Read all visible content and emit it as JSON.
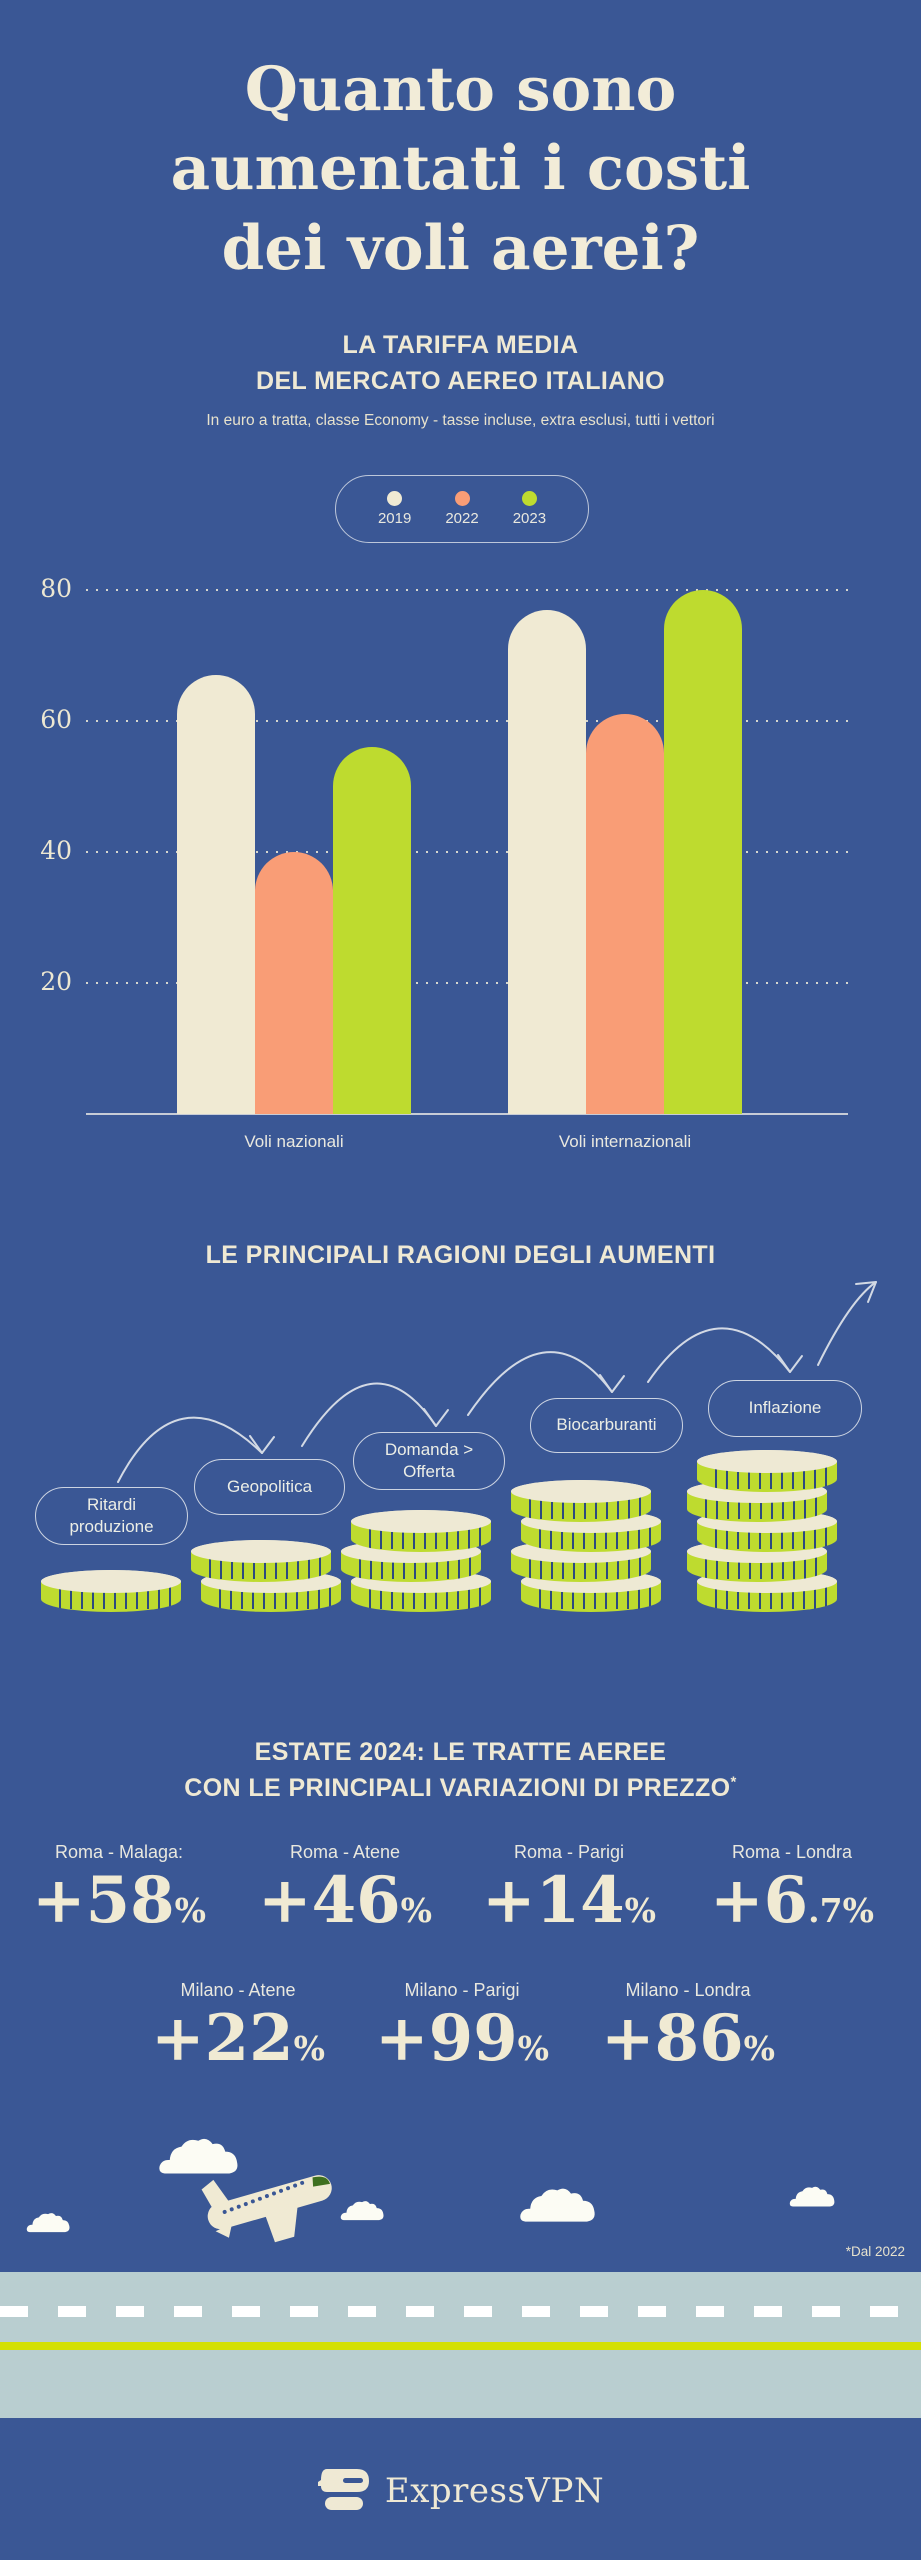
{
  "colors": {
    "background": "#3a5795",
    "cream": "#f0ead3",
    "salmon": "#f99d76",
    "lime": "#bedb2f",
    "road_band": "#b9ced0",
    "road_line": "#d4e005",
    "stroke_light": "#dbe0e9"
  },
  "header": {
    "title_lines": [
      "Quanto sono",
      "aumentati i costi",
      "dei voli aerei?"
    ]
  },
  "chart_section": {
    "title_line1": "LA TARIFFA MEDIA",
    "title_line2": "DEL MERCATO AEREO ITALIANO",
    "note": "In euro a tratta, classe Economy - tasse incluse, extra esclusi, tutti i vettori"
  },
  "chart_data": {
    "type": "bar",
    "title": "LA TARIFFA MEDIA DEL MERCATO AEREO ITALIANO",
    "subtitle": "In euro a tratta, classe Economy - tasse incluse, extra esclusi, tutti i vettori",
    "categories": [
      "Voli nazionali",
      "Voli internazionali"
    ],
    "series": [
      {
        "name": "2019",
        "color": "#f0ead3",
        "values": [
          67,
          77
        ]
      },
      {
        "name": "2022",
        "color": "#f99d76",
        "values": [
          40,
          61
        ]
      },
      {
        "name": "2023",
        "color": "#bedb2f",
        "values": [
          56,
          80
        ]
      }
    ],
    "unit": "euro a tratta",
    "ylim": [
      0,
      85
    ],
    "yticks": [
      20,
      40,
      60,
      80
    ],
    "grid": "horizontal-dotted",
    "legend_position": "top-center"
  },
  "reasons_section": {
    "title": "LE PRINCIPALI RAGIONI DEGLI AUMENTI",
    "items": [
      {
        "label": "Ritardi produzione",
        "coins": 1
      },
      {
        "label": "Geopolitica",
        "coins": 2
      },
      {
        "label": "Domanda > Offerta",
        "coins": 3
      },
      {
        "label": "Biocarburanti",
        "coins": 4
      },
      {
        "label": "Inflazione",
        "coins": 5
      }
    ]
  },
  "routes_section": {
    "title_line1": "ESTATE 2024: LE TRATTE AEREE",
    "title_line2": "CON LE PRINCIPALI VARIAZIONI DI PREZZO",
    "title_asterisk": "*",
    "rows": [
      [
        {
          "label": "Roma - Malaga:",
          "value_big": "+58",
          "value_small": "%"
        },
        {
          "label": "Roma - Atene",
          "value_big": "+46",
          "value_small": "%"
        },
        {
          "label": "Roma - Parigi",
          "value_big": "+14",
          "value_small": "%"
        },
        {
          "label": "Roma - Londra",
          "value_big": "+6",
          "value_small": ".7%"
        }
      ],
      [
        {
          "label": "Milano - Atene",
          "value_big": "+22",
          "value_small": "%"
        },
        {
          "label": "Milano - Parigi",
          "value_big": "+99",
          "value_small": "%"
        },
        {
          "label": "Milano - Londra",
          "value_big": "+86",
          "value_small": "%"
        }
      ]
    ],
    "footnote": "*Dal 2022"
  },
  "footer": {
    "brand": "ExpressVPN"
  }
}
